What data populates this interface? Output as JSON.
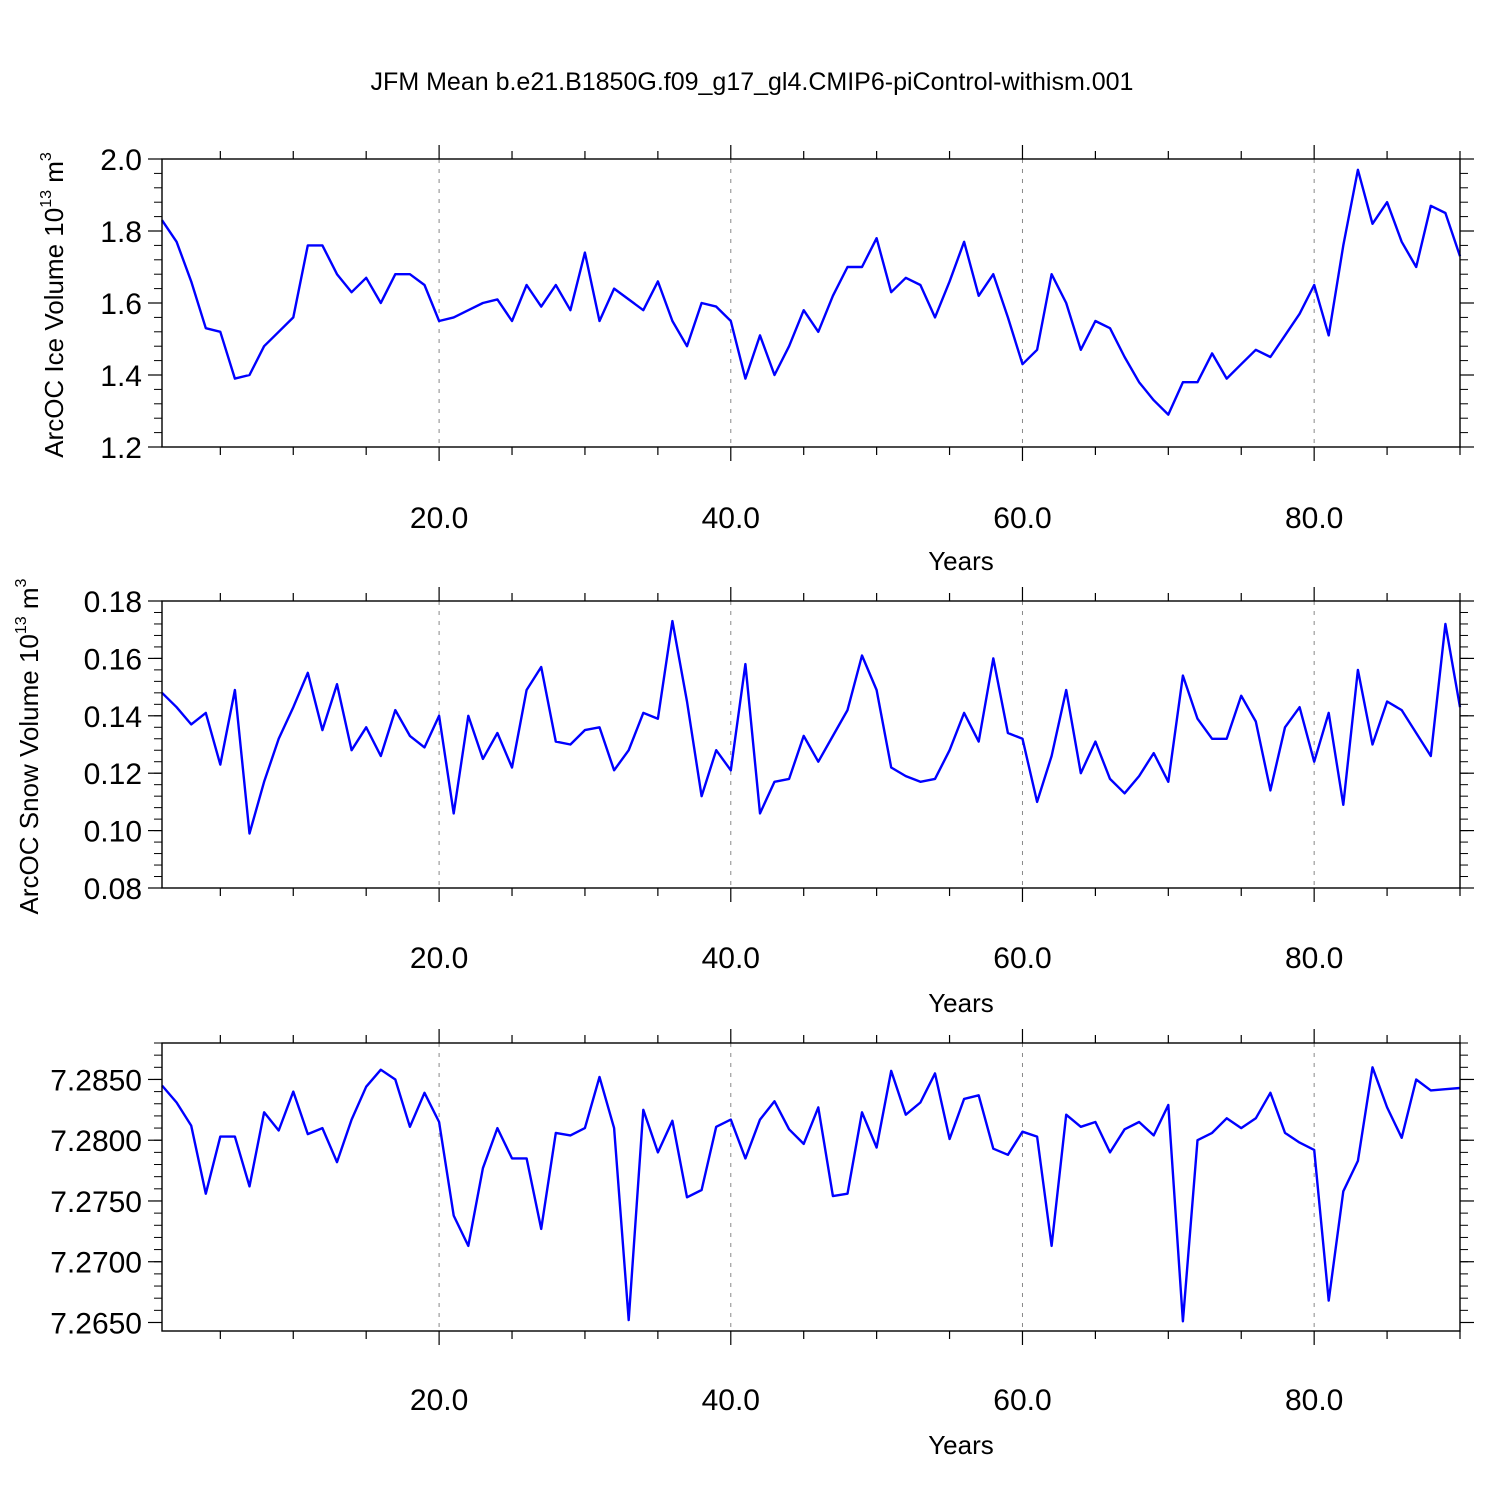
{
  "title": "JFM Mean b.e21.B1850G.f09_g17_gl4.CMIP6-piControl-withism.001",
  "line_color": "#0000ff",
  "chart_data": [
    {
      "type": "line",
      "xlabel": "Years",
      "ylabel": {
        "main": "ArcOC Ice Volume 10",
        "exp": "13",
        "unit": " m",
        "unit_exp": "3"
      },
      "xlim": [
        1,
        90
      ],
      "ylim": [
        1.2,
        2.0
      ],
      "grid": "vertical-dashed",
      "x_ticks": [
        20,
        40,
        60,
        80
      ],
      "x_tick_labels": [
        "20.0",
        "40.0",
        "60.0",
        "80.0"
      ],
      "y_ticks": [
        1.2,
        1.4,
        1.6,
        1.8,
        2.0
      ],
      "y_tick_labels": [
        "1.2",
        "1.4",
        "1.6",
        "1.8",
        "2.0"
      ],
      "y_minor_step": 0.04,
      "series": [
        {
          "values": [
            1.83,
            1.77,
            1.66,
            1.53,
            1.52,
            1.39,
            1.4,
            1.48,
            1.52,
            1.56,
            1.76,
            1.76,
            1.68,
            1.63,
            1.67,
            1.6,
            1.68,
            1.68,
            1.65,
            1.55,
            1.56,
            1.58,
            1.6,
            1.61,
            1.55,
            1.65,
            1.59,
            1.65,
            1.58,
            1.74,
            1.55,
            1.64,
            1.61,
            1.58,
            1.66,
            1.55,
            1.48,
            1.6,
            1.59,
            1.55,
            1.39,
            1.51,
            1.4,
            1.48,
            1.58,
            1.52,
            1.62,
            1.7,
            1.7,
            1.78,
            1.63,
            1.67,
            1.65,
            1.56,
            1.66,
            1.77,
            1.62,
            1.68,
            1.56,
            1.43,
            1.47,
            1.68,
            1.6,
            1.47,
            1.55,
            1.53,
            1.45,
            1.38,
            1.33,
            1.29,
            1.38,
            1.38,
            1.46,
            1.39,
            1.43,
            1.47,
            1.45,
            1.51,
            1.57,
            1.65,
            1.51,
            1.76,
            1.97,
            1.82,
            1.88,
            1.77,
            1.7,
            1.87,
            1.85,
            1.73
          ]
        }
      ]
    },
    {
      "type": "line",
      "xlabel": "Years",
      "ylabel": {
        "main": "ArcOC Snow Volume 10",
        "exp": "13",
        "unit": " m",
        "unit_exp": "3"
      },
      "xlim": [
        1,
        90
      ],
      "ylim": [
        0.08,
        0.18
      ],
      "grid": "vertical-dashed",
      "x_ticks": [
        20,
        40,
        60,
        80
      ],
      "x_tick_labels": [
        "20.0",
        "40.0",
        "60.0",
        "80.0"
      ],
      "y_ticks": [
        0.08,
        0.1,
        0.12,
        0.14,
        0.16,
        0.18
      ],
      "y_tick_labels": [
        "0.08",
        "0.10",
        "0.12",
        "0.14",
        "0.16",
        "0.18"
      ],
      "y_minor_step": 0.004,
      "series": [
        {
          "values": [
            0.148,
            0.143,
            0.137,
            0.141,
            0.123,
            0.149,
            0.099,
            0.117,
            0.132,
            0.143,
            0.155,
            0.135,
            0.151,
            0.128,
            0.136,
            0.126,
            0.142,
            0.133,
            0.129,
            0.14,
            0.106,
            0.14,
            0.125,
            0.134,
            0.122,
            0.149,
            0.157,
            0.131,
            0.13,
            0.135,
            0.136,
            0.121,
            0.128,
            0.141,
            0.139,
            0.173,
            0.145,
            0.112,
            0.128,
            0.121,
            0.158,
            0.106,
            0.117,
            0.118,
            0.133,
            0.124,
            0.133,
            0.142,
            0.161,
            0.149,
            0.122,
            0.119,
            0.117,
            0.118,
            0.128,
            0.141,
            0.131,
            0.16,
            0.134,
            0.132,
            0.11,
            0.126,
            0.149,
            0.12,
            0.131,
            0.118,
            0.113,
            0.119,
            0.127,
            0.117,
            0.154,
            0.139,
            0.132,
            0.132,
            0.147,
            0.138,
            0.114,
            0.136,
            0.143,
            0.124,
            0.141,
            0.109,
            0.156,
            0.13,
            0.145,
            0.142,
            0.134,
            0.126,
            0.172,
            0.143
          ]
        }
      ]
    },
    {
      "type": "line",
      "xlabel": "Years",
      "ylabel": null,
      "xlim": [
        1,
        90
      ],
      "ylim": [
        7.2643,
        7.288
      ],
      "grid": "vertical-dashed",
      "x_ticks": [
        20,
        40,
        60,
        80
      ],
      "x_tick_labels": [
        "20.0",
        "40.0",
        "60.0",
        "80.0"
      ],
      "y_ticks": [
        7.265,
        7.27,
        7.275,
        7.28,
        7.285
      ],
      "y_tick_labels": [
        "7.2650",
        "7.2700",
        "7.2750",
        "7.2800",
        "7.2850"
      ],
      "y_minor_step": 0.001,
      "series": [
        {
          "values": [
            7.2845,
            7.2831,
            7.2812,
            7.2756,
            7.2803,
            7.2803,
            7.2762,
            7.2823,
            7.2808,
            7.284,
            7.2805,
            7.281,
            7.2782,
            7.2817,
            7.2844,
            7.2858,
            7.285,
            7.2811,
            7.2839,
            7.2815,
            7.2738,
            7.2713,
            7.2777,
            7.281,
            7.2785,
            7.2785,
            7.2727,
            7.2806,
            7.2804,
            7.281,
            7.2852,
            7.281,
            7.2652,
            7.2825,
            7.279,
            7.2816,
            7.2753,
            7.2759,
            7.2811,
            7.2817,
            7.2785,
            7.2817,
            7.2832,
            7.2809,
            7.2797,
            7.2827,
            7.2754,
            7.2756,
            7.2823,
            7.2794,
            7.2857,
            7.2821,
            7.2831,
            7.2855,
            7.2801,
            7.2834,
            7.2837,
            7.2793,
            7.2788,
            7.2807,
            7.2803,
            7.2713,
            7.2821,
            7.2811,
            7.2815,
            7.279,
            7.2809,
            7.2815,
            7.2804,
            7.2829,
            7.2651,
            7.28,
            7.2806,
            7.2818,
            7.281,
            7.2818,
            7.2839,
            7.2806,
            7.2798,
            7.2792,
            7.2668,
            7.2758,
            7.2783,
            7.286,
            7.2827,
            7.2802,
            7.285,
            7.2841,
            7.2842,
            7.2843
          ]
        }
      ]
    }
  ]
}
